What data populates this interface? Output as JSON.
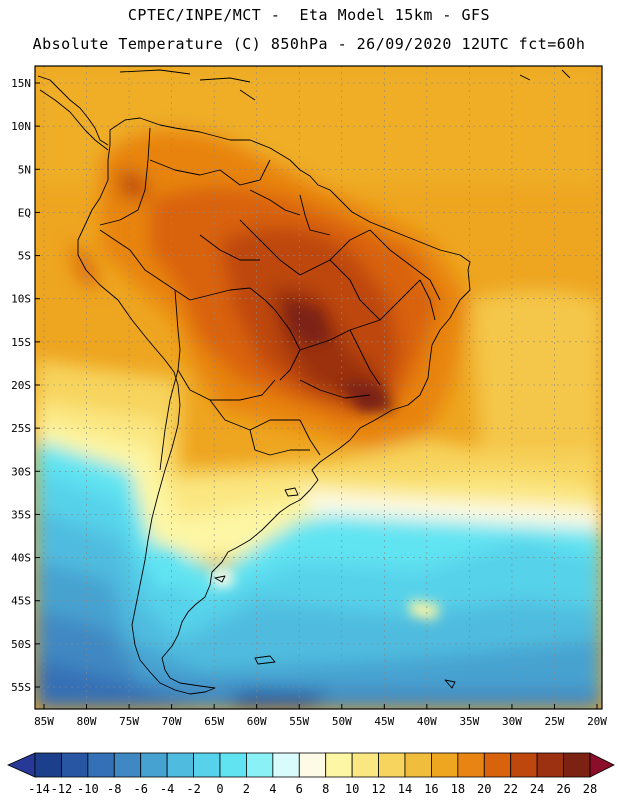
{
  "title_line1": "CPTEC/INPE/MCT -  Eta Model 15km - GFS",
  "title_line2": "Absolute Temperature (C) 850hPa - 26/09/2020 12UTC fct=60h",
  "lat_labels": [
    "15N",
    "10N",
    "5N",
    "EQ",
    "5S",
    "10S",
    "15S",
    "20S",
    "25S",
    "30S",
    "35S",
    "40S",
    "45S",
    "50S",
    "55S"
  ],
  "lat_values": [
    15,
    10,
    5,
    0,
    -5,
    -10,
    -15,
    -20,
    -25,
    -30,
    -35,
    -40,
    -45,
    -50,
    -55
  ],
  "lon_labels": [
    "85W",
    "80W",
    "75W",
    "70W",
    "65W",
    "60W",
    "55W",
    "50W",
    "45W",
    "40W",
    "35W",
    "30W",
    "25W",
    "20W"
  ],
  "lon_values": [
    -85,
    -80,
    -75,
    -70,
    -65,
    -60,
    -55,
    -50,
    -45,
    -40,
    -35,
    -30,
    -25,
    -20
  ],
  "colorbar": {
    "labels": [
      "-14",
      "-12",
      "-10",
      "-8",
      "-6",
      "-4",
      "-2",
      "0",
      "2",
      "4",
      "6",
      "8",
      "10",
      "12",
      "14",
      "16",
      "18",
      "20",
      "22",
      "24",
      "26",
      "28"
    ],
    "colors": [
      "#1c3f8c",
      "#2856a3",
      "#3470b5",
      "#3f88c3",
      "#46a2d0",
      "#4fbcdf",
      "#57d2ea",
      "#60e4f2",
      "#8af2f6",
      "#d9fbfb",
      "#fdfbe6",
      "#fdf6a4",
      "#fbe782",
      "#f7d45d",
      "#f1bd3d",
      "#eea520",
      "#e88411",
      "#d9620c",
      "#bd470d",
      "#9b3110",
      "#7b2212"
    ],
    "under_color": "#283896",
    "over_color": "#8a0e2a"
  }
}
